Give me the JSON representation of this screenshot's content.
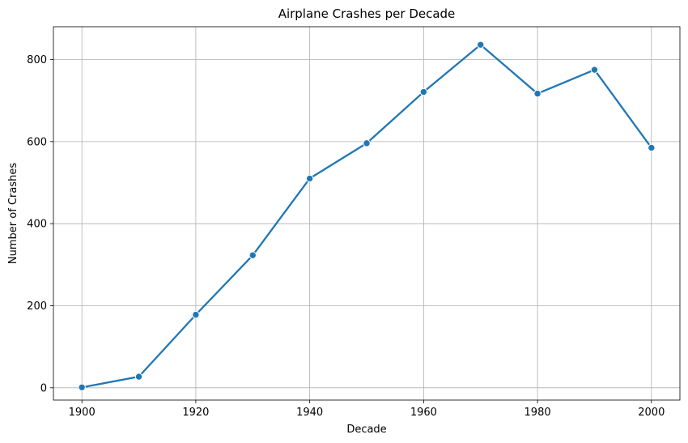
{
  "chart_data": {
    "type": "line",
    "title": "Airplane Crashes per Decade",
    "xlabel": "Decade",
    "ylabel": "Number of Crashes",
    "x": [
      1900,
      1910,
      1920,
      1930,
      1940,
      1950,
      1960,
      1970,
      1980,
      1990,
      2000
    ],
    "series": [
      {
        "values": [
          1,
          27,
          178,
          323,
          510,
          596,
          721,
          836,
          717,
          775,
          585
        ],
        "color": "#1f77b4",
        "marker": "circle"
      }
    ],
    "xlim": [
      1895,
      2005
    ],
    "ylim": [
      -30,
      880
    ],
    "xticks": [
      1900,
      1920,
      1940,
      1960,
      1980,
      2000
    ],
    "yticks": [
      0,
      200,
      400,
      600,
      800
    ],
    "grid": true,
    "legend": "none"
  }
}
